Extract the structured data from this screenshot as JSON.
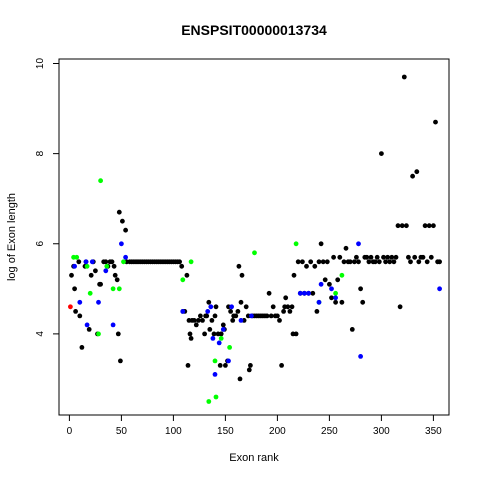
{
  "chart_data": {
    "type": "scatter",
    "title": "ENSPSIT00000013734",
    "xlabel": "Exon rank",
    "ylabel": "log of Exon length",
    "xlim": [
      -10,
      365
    ],
    "ylim": [
      2.2,
      10.1
    ],
    "x_ticks": [
      0,
      50,
      100,
      150,
      200,
      250,
      300,
      350
    ],
    "y_ticks": [
      4,
      6,
      8,
      10
    ],
    "grid": false,
    "legend": "none",
    "colors": {
      "black": "#000000",
      "green": "#00ff00",
      "blue": "#0000ff",
      "red": "#ff0000"
    },
    "series": [
      {
        "color": "black",
        "points": [
          [
            2,
            5.3
          ],
          [
            4,
            5.5
          ],
          [
            5,
            5.0
          ],
          [
            6,
            4.5
          ],
          [
            9,
            5.6
          ],
          [
            10,
            4.4
          ],
          [
            12,
            3.7
          ],
          [
            15,
            5.5
          ],
          [
            16,
            5.6
          ],
          [
            19,
            4.1
          ],
          [
            21,
            5.3
          ],
          [
            23,
            5.6
          ],
          [
            25,
            5.4
          ],
          [
            27,
            4.0
          ],
          [
            29,
            5.1
          ],
          [
            30,
            5.1
          ],
          [
            33,
            5.6
          ],
          [
            35,
            5.6
          ],
          [
            37,
            5.5
          ],
          [
            39,
            5.6
          ],
          [
            41,
            5.6
          ],
          [
            43,
            5.5
          ],
          [
            44,
            5.3
          ],
          [
            46,
            5.2
          ],
          [
            47,
            4.0
          ],
          [
            48,
            6.7
          ],
          [
            49,
            3.4
          ],
          [
            51,
            6.5
          ],
          [
            54,
            6.3
          ],
          [
            55,
            5.6
          ],
          [
            58,
            5.6
          ],
          [
            60,
            5.6
          ],
          [
            62,
            5.6
          ],
          [
            64,
            5.6
          ],
          [
            66,
            5.6
          ],
          [
            68,
            5.6
          ],
          [
            70,
            5.6
          ],
          [
            72,
            5.6
          ],
          [
            74,
            5.6
          ],
          [
            76,
            5.6
          ],
          [
            78,
            5.6
          ],
          [
            80,
            5.6
          ],
          [
            82,
            5.6
          ],
          [
            84,
            5.6
          ],
          [
            86,
            5.6
          ],
          [
            88,
            5.6
          ],
          [
            90,
            5.6
          ],
          [
            92,
            5.6
          ],
          [
            94,
            5.6
          ],
          [
            96,
            5.6
          ],
          [
            98,
            5.6
          ],
          [
            100,
            5.6
          ],
          [
            102,
            5.6
          ],
          [
            104,
            5.6
          ],
          [
            106,
            5.6
          ],
          [
            108,
            5.5
          ],
          [
            109,
            4.5
          ],
          [
            111,
            4.5
          ],
          [
            113,
            5.3
          ],
          [
            114,
            3.3
          ],
          [
            115,
            4.3
          ],
          [
            116,
            4.0
          ],
          [
            117,
            3.9
          ],
          [
            118,
            4.3
          ],
          [
            120,
            4.3
          ],
          [
            122,
            4.2
          ],
          [
            124,
            4.3
          ],
          [
            126,
            4.4
          ],
          [
            128,
            4.3
          ],
          [
            130,
            4.0
          ],
          [
            131,
            4.4
          ],
          [
            132,
            4.4
          ],
          [
            134,
            4.7
          ],
          [
            135,
            4.1
          ],
          [
            137,
            4.3
          ],
          [
            139,
            4.0
          ],
          [
            140,
            4.4
          ],
          [
            141,
            4.6
          ],
          [
            143,
            4.0
          ],
          [
            145,
            3.3
          ],
          [
            146,
            4.0
          ],
          [
            148,
            4.2
          ],
          [
            149,
            4.1
          ],
          [
            150,
            3.3
          ],
          [
            152,
            3.4
          ],
          [
            153,
            4.6
          ],
          [
            155,
            4.5
          ],
          [
            157,
            4.3
          ],
          [
            158,
            4.4
          ],
          [
            160,
            4.4
          ],
          [
            162,
            4.5
          ],
          [
            163,
            5.5
          ],
          [
            164,
            3.0
          ],
          [
            165,
            4.7
          ],
          [
            166,
            5.3
          ],
          [
            168,
            4.3
          ],
          [
            170,
            4.6
          ],
          [
            172,
            4.4
          ],
          [
            173,
            3.2
          ],
          [
            174,
            3.3
          ],
          [
            176,
            4.4
          ],
          [
            178,
            4.4
          ],
          [
            180,
            4.4
          ],
          [
            182,
            4.4
          ],
          [
            184,
            4.4
          ],
          [
            186,
            4.4
          ],
          [
            188,
            4.4
          ],
          [
            190,
            4.4
          ],
          [
            192,
            4.9
          ],
          [
            194,
            4.4
          ],
          [
            196,
            4.6
          ],
          [
            198,
            4.4
          ],
          [
            200,
            4.4
          ],
          [
            202,
            4.3
          ],
          [
            204,
            3.3
          ],
          [
            206,
            4.5
          ],
          [
            207,
            4.6
          ],
          [
            208,
            4.8
          ],
          [
            210,
            4.6
          ],
          [
            212,
            4.5
          ],
          [
            214,
            4.6
          ],
          [
            215,
            4.0
          ],
          [
            216,
            5.3
          ],
          [
            218,
            4.0
          ],
          [
            220,
            5.6
          ],
          [
            222,
            4.9
          ],
          [
            224,
            5.6
          ],
          [
            226,
            4.9
          ],
          [
            228,
            5.5
          ],
          [
            230,
            4.9
          ],
          [
            232,
            5.6
          ],
          [
            234,
            4.9
          ],
          [
            236,
            5.5
          ],
          [
            238,
            4.5
          ],
          [
            240,
            5.6
          ],
          [
            242,
            6.0
          ],
          [
            244,
            5.6
          ],
          [
            246,
            5.2
          ],
          [
            248,
            5.6
          ],
          [
            250,
            5.1
          ],
          [
            252,
            4.8
          ],
          [
            254,
            5.7
          ],
          [
            256,
            4.7
          ],
          [
            258,
            5.2
          ],
          [
            260,
            5.7
          ],
          [
            262,
            4.7
          ],
          [
            264,
            5.6
          ],
          [
            266,
            5.9
          ],
          [
            268,
            5.6
          ],
          [
            270,
            5.6
          ],
          [
            272,
            4.1
          ],
          [
            274,
            5.6
          ],
          [
            276,
            5.7
          ],
          [
            278,
            5.6
          ],
          [
            280,
            5.0
          ],
          [
            282,
            4.7
          ],
          [
            284,
            5.7
          ],
          [
            286,
            5.7
          ],
          [
            288,
            5.6
          ],
          [
            290,
            5.7
          ],
          [
            292,
            5.6
          ],
          [
            294,
            5.6
          ],
          [
            296,
            5.7
          ],
          [
            298,
            5.6
          ],
          [
            300,
            8.0
          ],
          [
            302,
            5.7
          ],
          [
            304,
            5.6
          ],
          [
            306,
            5.7
          ],
          [
            308,
            5.6
          ],
          [
            310,
            5.7
          ],
          [
            312,
            5.6
          ],
          [
            314,
            5.7
          ],
          [
            316,
            6.4
          ],
          [
            318,
            4.6
          ],
          [
            320,
            6.4
          ],
          [
            322,
            9.7
          ],
          [
            324,
            6.4
          ],
          [
            326,
            5.7
          ],
          [
            328,
            5.6
          ],
          [
            330,
            7.5
          ],
          [
            332,
            5.7
          ],
          [
            334,
            7.6
          ],
          [
            336,
            5.6
          ],
          [
            338,
            5.7
          ],
          [
            340,
            5.7
          ],
          [
            342,
            6.4
          ],
          [
            344,
            5.6
          ],
          [
            346,
            6.4
          ],
          [
            348,
            5.7
          ],
          [
            350,
            6.4
          ],
          [
            352,
            8.7
          ],
          [
            354,
            5.6
          ],
          [
            356,
            5.6
          ]
        ]
      },
      {
        "color": "green",
        "points": [
          [
            4,
            5.7
          ],
          [
            7,
            5.7
          ],
          [
            17,
            5.5
          ],
          [
            20,
            4.9
          ],
          [
            28,
            4.0
          ],
          [
            30,
            7.4
          ],
          [
            36,
            5.5
          ],
          [
            42,
            5.0
          ],
          [
            48,
            5.0
          ],
          [
            52,
            5.6
          ],
          [
            109,
            5.2
          ],
          [
            117,
            5.6
          ],
          [
            134,
            2.5
          ],
          [
            140,
            3.4
          ],
          [
            141,
            2.6
          ],
          [
            146,
            3.9
          ],
          [
            154,
            3.7
          ],
          [
            178,
            5.8
          ],
          [
            218,
            6.0
          ],
          [
            240,
            4.7
          ],
          [
            256,
            4.9
          ],
          [
            262,
            5.3
          ]
        ]
      },
      {
        "color": "blue",
        "points": [
          [
            5,
            5.5
          ],
          [
            10,
            4.7
          ],
          [
            16,
            5.6
          ],
          [
            17,
            4.2
          ],
          [
            22,
            5.6
          ],
          [
            28,
            4.7
          ],
          [
            35,
            5.4
          ],
          [
            42,
            4.2
          ],
          [
            50,
            6.0
          ],
          [
            54,
            5.7
          ],
          [
            109,
            4.5
          ],
          [
            133,
            4.5
          ],
          [
            136,
            4.6
          ],
          [
            138,
            3.9
          ],
          [
            140,
            3.1
          ],
          [
            144,
            3.8
          ],
          [
            148,
            4.1
          ],
          [
            153,
            3.4
          ],
          [
            156,
            4.6
          ],
          [
            165,
            4.3
          ],
          [
            175,
            4.4
          ],
          [
            222,
            4.9
          ],
          [
            226,
            4.9
          ],
          [
            230,
            4.9
          ],
          [
            240,
            4.7
          ],
          [
            242,
            5.1
          ],
          [
            252,
            5.0
          ],
          [
            256,
            4.8
          ],
          [
            278,
            6.0
          ],
          [
            280,
            3.5
          ],
          [
            356,
            5.0
          ]
        ]
      },
      {
        "color": "red",
        "points": [
          [
            1,
            4.6
          ]
        ]
      }
    ]
  }
}
